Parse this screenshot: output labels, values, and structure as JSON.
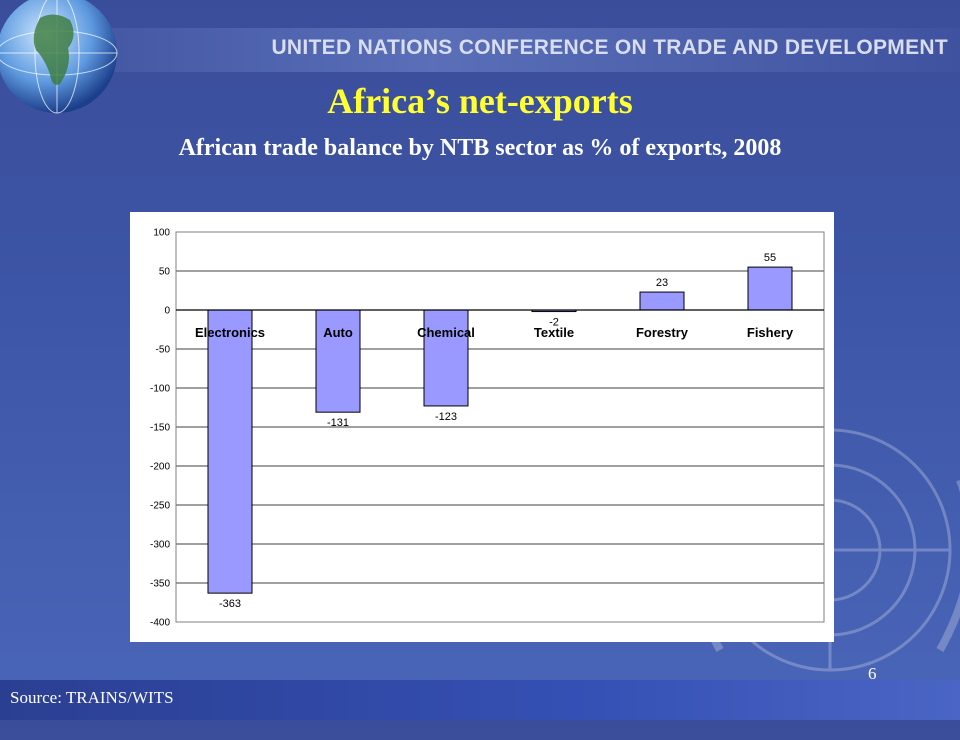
{
  "header": {
    "org_title": "UNITED NATIONS CONFERENCE ON TRADE AND DEVELOPMENT"
  },
  "slide": {
    "title": "Africa’s net-exports",
    "subtitle": "African trade balance by NTB sector as % of exports, 2008",
    "page_number": "6",
    "source": "Source: TRAINS/WITS"
  },
  "colors": {
    "bar_fill": "#9999ff",
    "title": "#ffff33"
  },
  "chart_data": {
    "type": "bar",
    "categories": [
      "Electronics",
      "Auto",
      "Chemical",
      "Textile",
      "Forestry",
      "Fishery"
    ],
    "values": [
      -363,
      -131,
      -123,
      -2,
      23,
      55
    ],
    "value_labels": [
      "-363",
      "-131",
      "-123",
      "-2",
      "23",
      "55"
    ],
    "ylim": [
      -400,
      100
    ],
    "yticks": [
      100,
      50,
      0,
      -50,
      -100,
      -150,
      -200,
      -250,
      -300,
      -350,
      -400
    ],
    "ytick_labels": [
      "100",
      "50",
      "0",
      "-50",
      "-100",
      "-150",
      "-200",
      "-250",
      "-300",
      "-350",
      "-400"
    ],
    "grid": true,
    "legend": "none"
  }
}
